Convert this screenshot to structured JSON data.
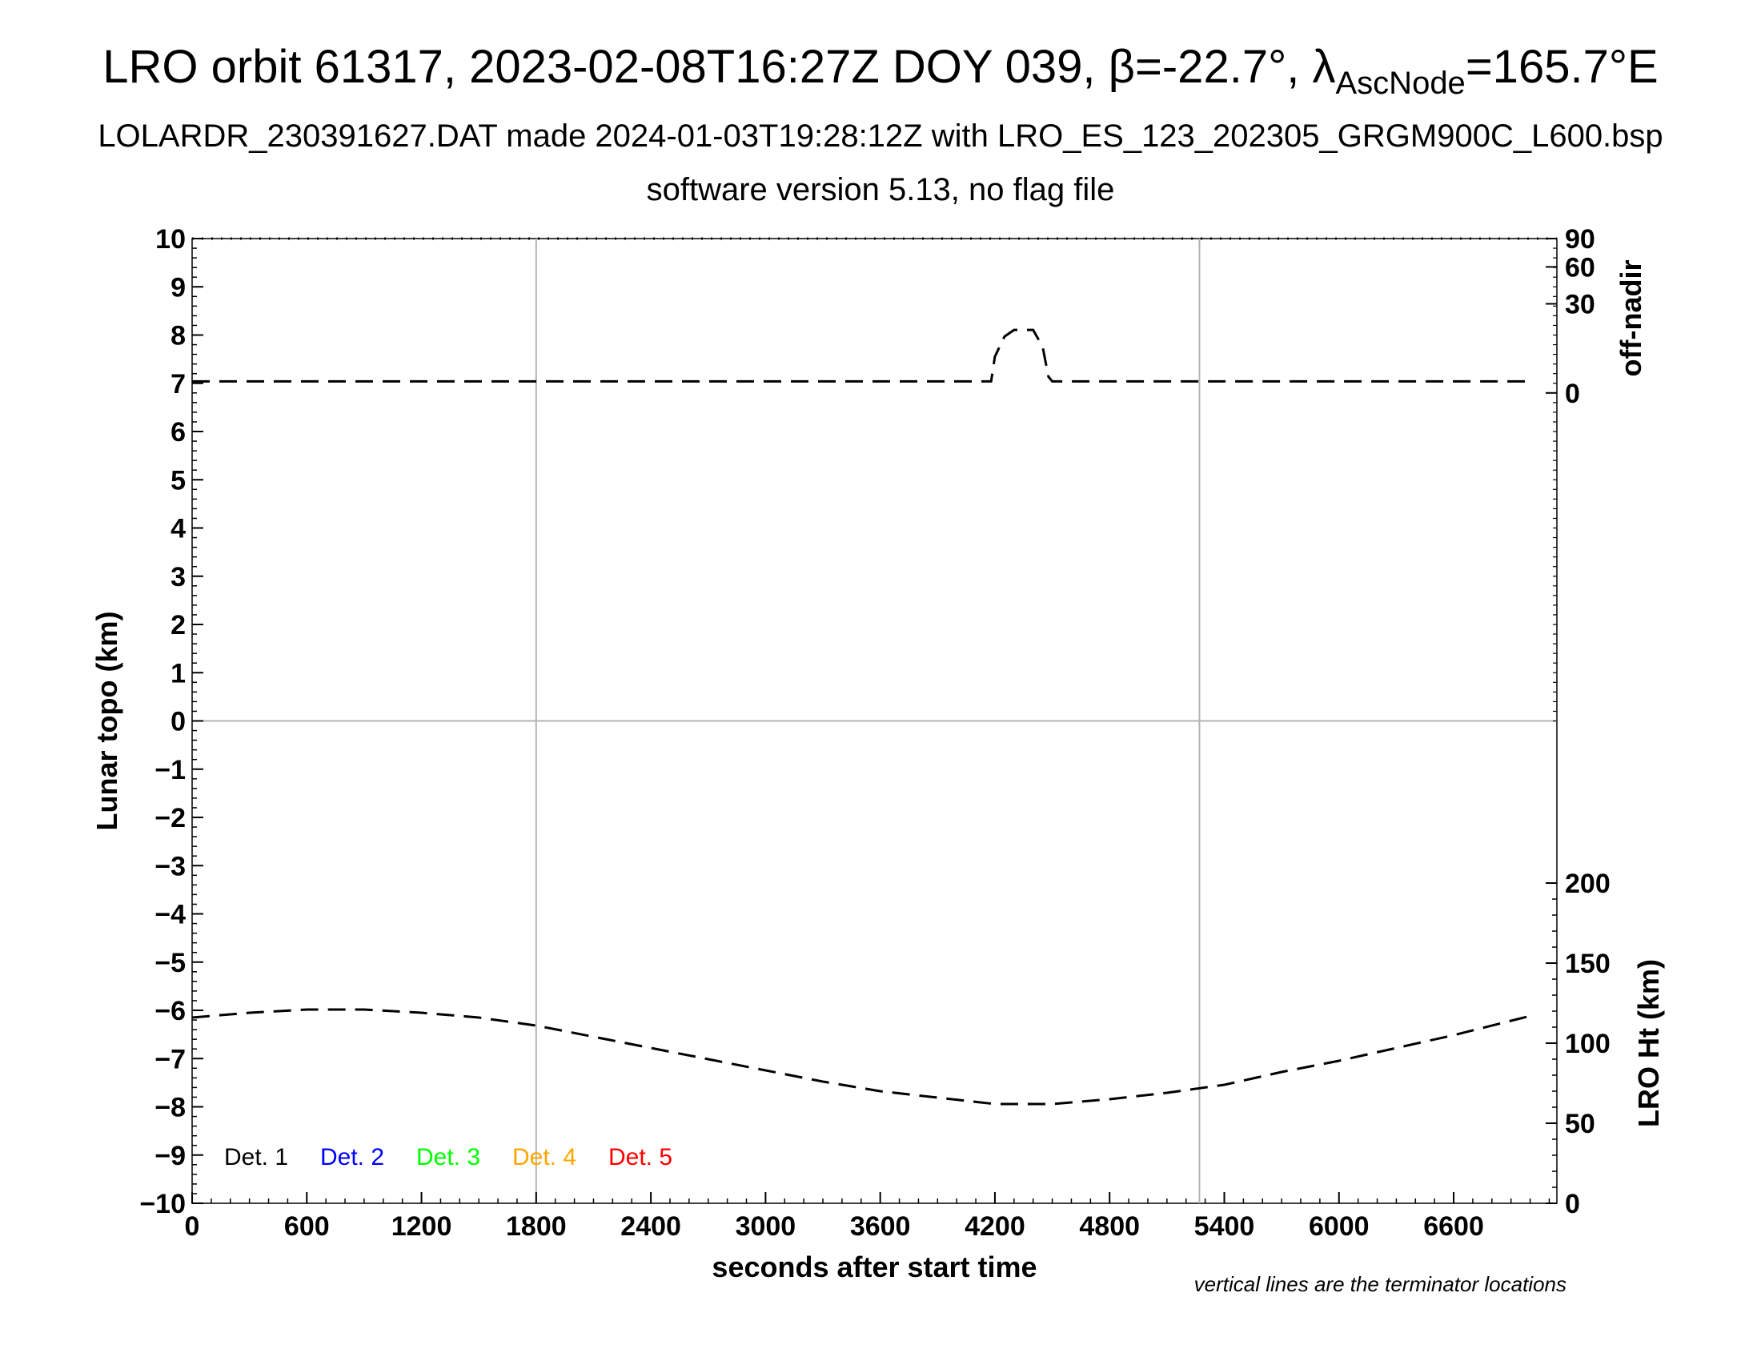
{
  "header": {
    "title_prefix": "LRO orbit 61317, 2023-02-08T16:27Z DOY 039, β=-22.7°, λ",
    "title_sub": "AscNode",
    "title_suffix": "=165.7°E",
    "subtitle": "LOLARDR_230391627.DAT made 2024-01-03T19:28:12Z with LRO_ES_123_202305_GRGM900C_L600.bsp",
    "version_line": "software version 5.13, no flag file"
  },
  "footnote": "vertical lines are the terminator locations",
  "colors": {
    "det1": "#000000",
    "det2": "#0000ff",
    "det3": "#00ff00",
    "det4": "#ffa500",
    "det5": "#ff0000",
    "grid": "#b3b3b3",
    "trace": "#000000"
  },
  "chart_data": {
    "type": "line",
    "xlabel": "seconds after start time",
    "ylabel": "Lunar topo (km)",
    "y2label_top": "off-nadir",
    "y2label_bottom": "LRO Ht (km)",
    "xlim": [
      0,
      7140
    ],
    "ylim": [
      -10,
      10
    ],
    "x_ticks": [
      "0",
      "600",
      "1200",
      "1800",
      "2400",
      "3000",
      "3600",
      "4200",
      "4800",
      "5400",
      "6000",
      "6600"
    ],
    "y_ticks": [
      "10",
      "9",
      "8",
      "7",
      "6",
      "5",
      "4",
      "3",
      "2",
      "1",
      "0",
      "−1",
      "−2",
      "−3",
      "−4",
      "−5",
      "−6",
      "−7",
      "−8",
      "−9",
      "−10"
    ],
    "off_nadir_ticks": [
      "0",
      "30",
      "60",
      "90"
    ],
    "lro_ht_ticks": [
      "0",
      "50",
      "100",
      "150",
      "200"
    ],
    "terminator_lines_x": [
      1800,
      5270
    ],
    "grid": "zero line and terminator lines",
    "legend": [
      "Det. 1",
      "Det. 2",
      "Det. 3",
      "Det. 4",
      "Det. 5"
    ],
    "legend_placement": "bottom-left",
    "series": [
      {
        "name": "",
        "axis": "off-nadir",
        "x": [
          0,
          1000,
          2000,
          3000,
          4000,
          4180,
          4200,
          4250,
          4300,
          4400,
          4450,
          4480,
          4500,
          5000,
          6000,
          7000
        ],
        "y": [
          0.5,
          0.5,
          0.5,
          0.5,
          0.5,
          0.5,
          5,
          12,
          15,
          15,
          8,
          1,
          0.5,
          0.5,
          0.5,
          0.5
        ]
      },
      {
        "name": "",
        "axis": "LRO Ht (km)",
        "x": [
          0,
          300,
          600,
          900,
          1200,
          1500,
          1800,
          2100,
          2400,
          2700,
          3000,
          3300,
          3600,
          3900,
          4200,
          4500,
          4800,
          5100,
          5400,
          5700,
          6000,
          6300,
          6600,
          7000
        ],
        "y": [
          116,
          119,
          121,
          121,
          119,
          116,
          111,
          104,
          97,
          90,
          83,
          76,
          70,
          66,
          62,
          62,
          65,
          69,
          74,
          82,
          89,
          97,
          105,
          117
        ]
      }
    ]
  }
}
